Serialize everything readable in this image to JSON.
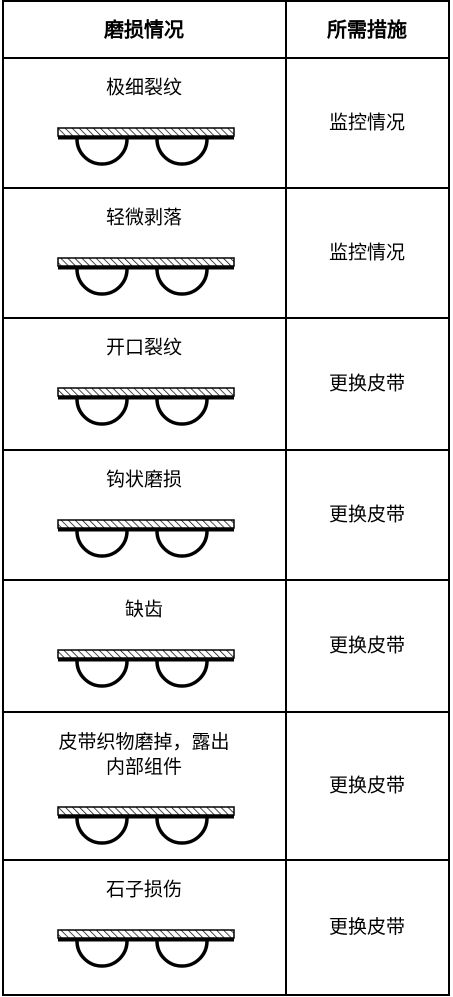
{
  "table": {
    "header": [
      "磨损情况",
      "所需措施"
    ],
    "rows": [
      [
        "极细裂纹",
        "监控情况"
      ],
      [
        "轻微剥落",
        "监控情况"
      ],
      [
        "开口裂纹",
        "更换皮带"
      ],
      [
        "钩状磨损",
        "更换皮带"
      ],
      [
        "缺齿",
        "更换皮带"
      ],
      [
        "皮带织物磨掉，露出\n内部组件",
        "更换皮带"
      ],
      [
        "石子损伤",
        "更换皮带"
      ]
    ]
  }
}
